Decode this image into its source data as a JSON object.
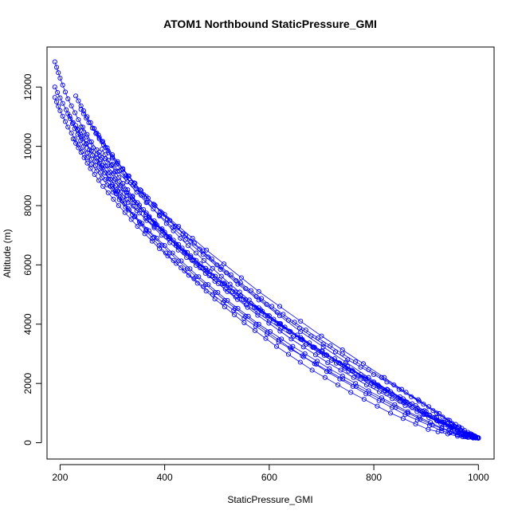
{
  "chart_data": {
    "type": "scatter",
    "title": "ATOM1 Northbound StaticPressure_GMI",
    "xlabel": "StaticPressure_GMI",
    "ylabel": "Altitude (m)",
    "xlim": [
      175,
      1030
    ],
    "ylim": [
      -550,
      13350
    ],
    "xticks": [
      200,
      400,
      600,
      800,
      1000
    ],
    "yticks": [
      0,
      2000,
      4000,
      6000,
      8000,
      10000,
      12000
    ],
    "grid": false,
    "legend": "none",
    "marker": "open-circle",
    "connected": true,
    "series_color": "#0000ff",
    "series": [
      {
        "x": [
          190,
          200,
          215,
          235,
          260,
          290,
          325,
          365,
          410,
          460,
          515,
          575,
          640,
          710,
          785,
          860,
          930,
          975,
          1000
        ],
        "y": [
          12850,
          12300,
          11600,
          10900,
          10150,
          9350,
          8550,
          7750,
          6950,
          6150,
          5350,
          4550,
          3750,
          2950,
          2150,
          1400,
          700,
          300,
          150
        ]
      },
      {
        "x": [
          190,
          205,
          225,
          250,
          280,
          315,
          355,
          400,
          450,
          505,
          565,
          630,
          700,
          775,
          850,
          920,
          965,
          995
        ],
        "y": [
          12000,
          11450,
          10800,
          10100,
          9350,
          8600,
          7850,
          7100,
          6300,
          5500,
          4700,
          3900,
          3100,
          2300,
          1550,
          850,
          400,
          180
        ]
      },
      {
        "x": [
          190,
          200,
          215,
          235,
          260,
          290,
          325,
          365,
          410,
          460,
          515,
          575,
          640,
          710,
          785,
          860,
          930,
          975,
          998
        ],
        "y": [
          11650,
          11200,
          10650,
          10050,
          9400,
          8700,
          7950,
          7200,
          6400,
          5600,
          4800,
          4000,
          3200,
          2400,
          1650,
          950,
          400,
          200,
          170
        ]
      },
      {
        "x": [
          230,
          245,
          265,
          290,
          320,
          355,
          395,
          440,
          490,
          545,
          605,
          670,
          740,
          815,
          885,
          945,
          980,
          1000
        ],
        "y": [
          11700,
          11200,
          10600,
          9950,
          9250,
          8500,
          7750,
          7000,
          6200,
          5400,
          4600,
          3800,
          3000,
          2200,
          1450,
          750,
          350,
          170
        ]
      },
      {
        "x": [
          240,
          255,
          275,
          300,
          330,
          365,
          405,
          450,
          500,
          555,
          615,
          680,
          750,
          825,
          895,
          950,
          985,
          1000
        ],
        "y": [
          11250,
          10800,
          10250,
          9650,
          9000,
          8300,
          7550,
          6800,
          6000,
          5200,
          4400,
          3600,
          2800,
          2050,
          1300,
          650,
          300,
          160
        ]
      },
      {
        "x": [
          215,
          228,
          245,
          268,
          296,
          330,
          370,
          415,
          465,
          520,
          580,
          645,
          715,
          790,
          865,
          930,
          970,
          995
        ],
        "y": [
          11100,
          10600,
          10000,
          9350,
          8650,
          7900,
          7150,
          6400,
          5600,
          4800,
          4000,
          3250,
          2500,
          1750,
          1050,
          500,
          250,
          160
        ]
      },
      {
        "x": [
          230,
          244,
          262,
          286,
          316,
          352,
          394,
          442,
          496,
          556,
          622,
          694,
          770,
          846,
          916,
          968,
          992
        ],
        "y": [
          10700,
          10250,
          9700,
          9100,
          8450,
          7750,
          7000,
          6250,
          5450,
          4650,
          3850,
          3050,
          2250,
          1500,
          850,
          350,
          180
        ]
      },
      {
        "x": [
          265,
          280,
          300,
          325,
          355,
          390,
          430,
          475,
          525,
          580,
          640,
          705,
          775,
          850,
          920,
          970,
          995
        ],
        "y": [
          10600,
          10150,
          9600,
          9000,
          8350,
          7650,
          6900,
          6150,
          5350,
          4550,
          3750,
          2950,
          2150,
          1400,
          750,
          330,
          160
        ]
      },
      {
        "x": [
          225,
          240,
          258,
          282,
          312,
          348,
          390,
          438,
          492,
          552,
          618,
          690,
          766,
          842,
          912,
          965,
          990
        ],
        "y": [
          10250,
          9800,
          9250,
          8650,
          8000,
          7300,
          6550,
          5800,
          5000,
          4200,
          3400,
          2650,
          1900,
          1200,
          600,
          250,
          160
        ]
      },
      {
        "x": [
          240,
          256,
          278,
          305,
          338,
          377,
          422,
          473,
          530,
          592,
          660,
          733,
          808,
          880,
          940,
          980,
          998
        ],
        "y": [
          10650,
          10150,
          9550,
          8900,
          8200,
          7450,
          6700,
          5900,
          5100,
          4300,
          3500,
          2700,
          1950,
          1250,
          650,
          300,
          170
        ]
      },
      {
        "x": [
          280,
          298,
          320,
          348,
          382,
          422,
          468,
          520,
          578,
          642,
          712,
          786,
          860,
          928,
          975,
          998
        ],
        "y": [
          9900,
          9350,
          8750,
          8100,
          7400,
          6650,
          5900,
          5100,
          4300,
          3500,
          2700,
          1950,
          1250,
          650,
          300,
          170
        ]
      },
      {
        "x": [
          270,
          286,
          306,
          332,
          364,
          402,
          446,
          496,
          552,
          614,
          682,
          756,
          832,
          904,
          960,
          990
        ],
        "y": [
          9600,
          9100,
          8500,
          7850,
          7150,
          6400,
          5650,
          4850,
          4050,
          3250,
          2450,
          1700,
          1000,
          450,
          220,
          160
        ]
      },
      {
        "x": [
          300,
          340,
          400,
          480,
          580,
          700,
          820,
          920,
          985
        ],
        "y": [
          9400,
          8700,
          7700,
          6500,
          5100,
          3600,
          2200,
          1000,
          300
        ]
      },
      {
        "x": [
          275,
          310,
          365,
          440,
          540,
          660,
          790,
          900,
          975
        ],
        "y": [
          9800,
          9150,
          8100,
          6850,
          5350,
          3750,
          2200,
          950,
          280
        ]
      },
      {
        "x": [
          300,
          330,
          380,
          450,
          545,
          660,
          785,
          895,
          975
        ],
        "y": [
          8650,
          8100,
          7300,
          6250,
          4950,
          3550,
          2150,
          950,
          300
        ]
      }
    ]
  }
}
